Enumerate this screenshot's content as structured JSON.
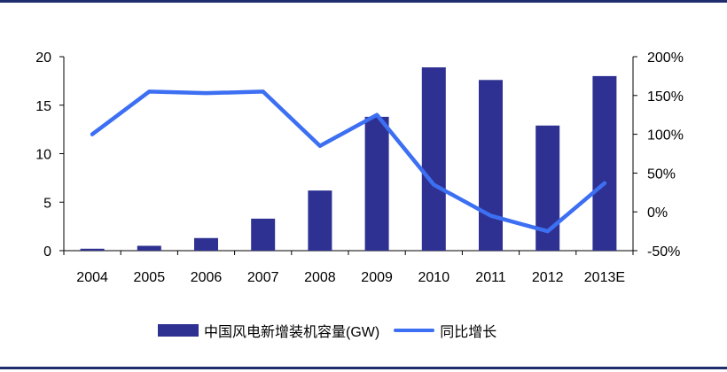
{
  "chart_data": {
    "type": "bar",
    "categories": [
      "2004",
      "2005",
      "2006",
      "2007",
      "2008",
      "2009",
      "2010",
      "2011",
      "2012",
      "2013E"
    ],
    "series": [
      {
        "name": "中国风电新增装机容量(GW)",
        "type": "bar",
        "axis": "left",
        "values": [
          0.2,
          0.5,
          1.3,
          3.3,
          6.2,
          13.8,
          18.9,
          17.6,
          12.9,
          18.0
        ]
      },
      {
        "name": "同比增长",
        "type": "line",
        "axis": "right",
        "values": [
          100,
          155,
          153,
          155,
          85,
          125,
          35,
          -5,
          -25,
          37
        ]
      }
    ],
    "y_left": {
      "ylim": [
        0,
        20
      ],
      "ticks": [
        "0",
        "5",
        "10",
        "15",
        "20"
      ]
    },
    "y_right": {
      "ylim": [
        -50,
        200
      ],
      "ticks": [
        "-50%",
        "0%",
        "50%",
        "100%",
        "150%",
        "200%"
      ]
    },
    "grid": false,
    "legend": "bottom",
    "colors": {
      "bar": "#2e3192",
      "line": "#3d6ff2",
      "rule": "#1f2d6e"
    }
  },
  "legend": {
    "bar_label": "中国风电新增装机容量(GW)",
    "line_label": "同比增长"
  }
}
